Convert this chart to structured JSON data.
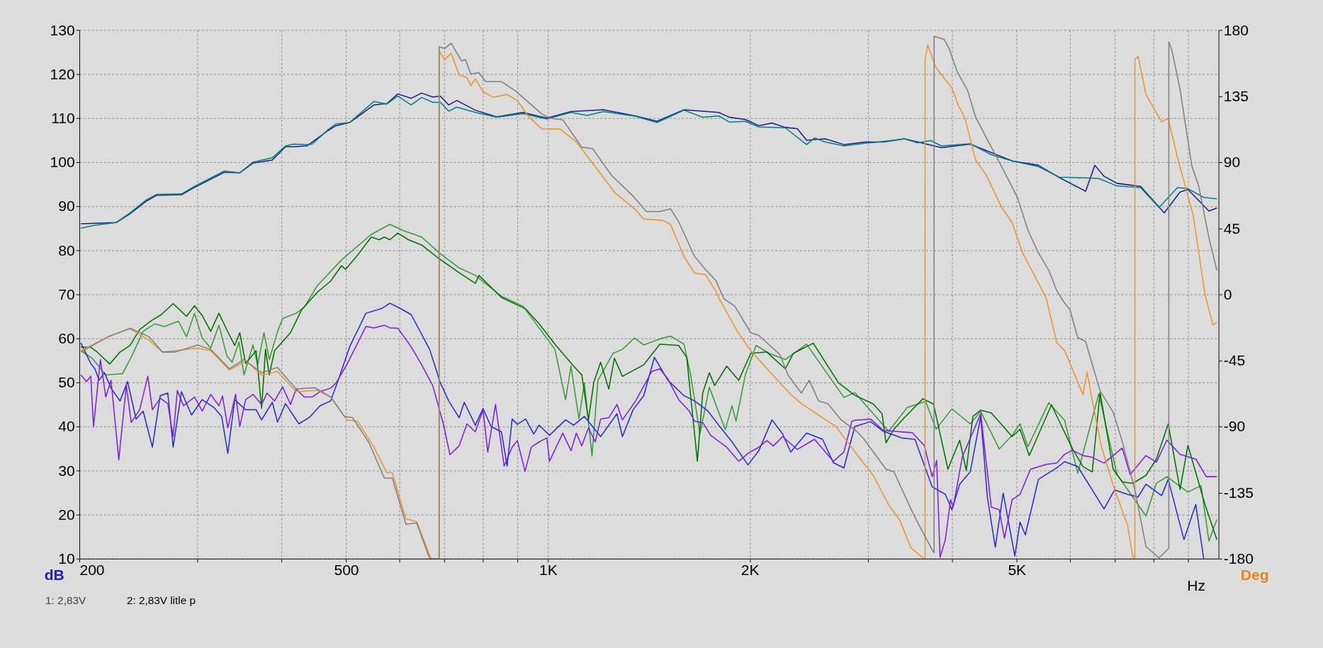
{
  "chart_data": {
    "type": "line",
    "xlabel": "Hz",
    "ylabel": "dB",
    "y2label": "Deg",
    "log": "x",
    "grid": true,
    "line_style": "solid",
    "xlim": [
      200,
      10000
    ],
    "ylim": [
      10,
      130
    ],
    "y2lim": [
      -180,
      180
    ],
    "xticks": [
      200,
      {
        "value": 300,
        "label": null
      },
      {
        "value": 400,
        "label": null
      },
      500,
      {
        "value": 600,
        "label": null
      },
      {
        "value": 700,
        "label": null
      },
      {
        "value": 800,
        "label": null
      },
      {
        "value": 900,
        "label": null
      },
      {
        "value": 1000,
        "label": "1K"
      },
      {
        "value": 2000,
        "label": "2K"
      },
      {
        "value": 3000,
        "label": null
      },
      {
        "value": 4000,
        "label": null
      },
      {
        "value": 5000,
        "label": "5K"
      },
      {
        "value": 6000,
        "label": null
      },
      {
        "value": 7000,
        "label": null
      },
      {
        "value": 8000,
        "label": null
      },
      {
        "value": 9000,
        "label": null
      }
    ],
    "yticks": [
      10,
      20,
      30,
      40,
      50,
      60,
      70,
      80,
      90,
      100,
      110,
      120,
      130
    ],
    "y2ticks": [
      -180,
      -135,
      -90,
      -45,
      0,
      45,
      90,
      135,
      180
    ],
    "annotations": [
      "1: 2,83V",
      "2: 2,83V litle p"
    ],
    "series": [
      {
        "color": "#1c1c8c",
        "x": [
          201,
          227,
          238,
          252,
          261,
          284,
          297,
          329,
          347,
          363,
          388,
          406,
          417,
          437,
          470,
          483,
          506,
          550,
          575,
          597,
          625,
          648,
          673,
          691,
          711,
          731,
          779,
          838,
          918,
          996,
          1082,
          1210,
          1351,
          1454,
          1595,
          1797,
          1864,
          1969,
          2062,
          2158,
          2259,
          2354,
          2430,
          2591,
          2762,
          2973,
          3163,
          3400,
          3860,
          4262,
          4922,
          5386,
          5789,
          6335,
          6538,
          6748,
          7056,
          7653,
          8299,
          8760,
          9001,
          9674,
          9941
        ],
        "values": [
          86,
          86.3,
          88.3,
          91.2,
          92.5,
          92.6,
          94.3,
          97.7,
          97.6,
          99.8,
          100.5,
          103.5,
          103.5,
          103.7,
          107.2,
          108.3,
          109,
          113,
          113.3,
          115.5,
          114.5,
          115.7,
          114.8,
          115,
          113,
          114,
          111.8,
          110.3,
          111.3,
          110,
          111.5,
          111.9,
          110.5,
          109.3,
          111.9,
          111.3,
          110.2,
          109.7,
          108.3,
          108.9,
          107.9,
          107.6,
          105,
          105.3,
          104,
          104.6,
          104.6,
          105.3,
          103.3,
          104.1,
          100.3,
          99.3,
          96.5,
          93.4,
          99.3,
          96.8,
          95.2,
          94.5,
          88.5,
          93.2,
          93.8,
          88.9,
          89.6
        ]
      },
      {
        "color": "#008080",
        "x": [
          201,
          211,
          227,
          238,
          252,
          261,
          284,
          297,
          329,
          347,
          363,
          388,
          406,
          417,
          437,
          445,
          470,
          483,
          506,
          550,
          575,
          597,
          625,
          648,
          673,
          691,
          711,
          731,
          779,
          838,
          918,
          996,
          1082,
          1144,
          1210,
          1351,
          1454,
          1595,
          1701,
          1797,
          1864,
          1969,
          2062,
          2259,
          2430,
          2497,
          2591,
          2762,
          2973,
          3163,
          3400,
          3558,
          3723,
          3860,
          4262,
          4582,
          4922,
          5386,
          5789,
          6111,
          6627,
          7056,
          7653,
          8150,
          8682,
          9001,
          9501,
          9941
        ],
        "values": [
          85,
          85.7,
          86.3,
          88.5,
          91.5,
          92.7,
          92.8,
          94.5,
          98,
          97.6,
          100,
          101,
          103.7,
          104.1,
          104,
          104.1,
          107.4,
          108.7,
          109,
          113.8,
          113.2,
          115,
          113,
          114.7,
          113.6,
          113.6,
          111.6,
          112.5,
          111.3,
          110.2,
          111,
          109.8,
          111.3,
          110.6,
          111.5,
          110.4,
          109,
          111.8,
          110.2,
          110.5,
          109.1,
          109.3,
          108,
          107.8,
          104,
          105.5,
          104.6,
          103.7,
          104.3,
          104.7,
          105.3,
          104.4,
          104.9,
          103.7,
          104.2,
          101.7,
          100.3,
          99,
          96.6,
          96.5,
          96.3,
          94.6,
          94.2,
          89.7,
          94.2,
          94,
          92,
          91.7
        ]
      },
      {
        "color": "#3a9a3a",
        "x": [
          201,
          209,
          219,
          232,
          240,
          249,
          259,
          268,
          281,
          289,
          297,
          305,
          314,
          323,
          332,
          338,
          346,
          352,
          363,
          369,
          377,
          384,
          395,
          402,
          421,
          433,
          453,
          492,
          545,
          581,
          608,
          648,
          691,
          737,
          779,
          852,
          918,
          1024,
          1062,
          1082,
          1112,
          1133,
          1163,
          1187,
          1250,
          1291,
          1345,
          1389,
          1481,
          1523,
          1595,
          1632,
          1685,
          1740,
          1838,
          1881,
          1907,
          1969,
          2043,
          2139,
          2259,
          2430,
          2762,
          2867,
          3221,
          3432,
          3657,
          3791,
          4002,
          4262,
          4419,
          4708,
          4922,
          5057,
          5196,
          5583,
          5894,
          6166,
          6627,
          7056,
          7448,
          7792,
          8077,
          8374,
          9001,
          9416,
          9674,
          9941
        ],
        "values": [
          57.2,
          55.5,
          51.7,
          52,
          56.3,
          61.6,
          63.3,
          62.7,
          63.9,
          60.4,
          65.7,
          60.1,
          57.8,
          63,
          56,
          54.6,
          59.2,
          51.7,
          58.5,
          54,
          61.3,
          55.2,
          61.6,
          64.5,
          65.7,
          67.1,
          72,
          77.8,
          83.6,
          85.9,
          84.5,
          83,
          79.2,
          76,
          74.3,
          69.6,
          67.3,
          57.5,
          46.1,
          53.7,
          41.7,
          49.9,
          33.3,
          50.5,
          56.6,
          57.5,
          60.1,
          58.5,
          60.1,
          60.5,
          58.7,
          51.7,
          38.3,
          48.9,
          39.3,
          44.7,
          41.2,
          51.7,
          58.4,
          56.6,
          55.2,
          58.7,
          46.6,
          47.7,
          38.9,
          44.3,
          45.7,
          39.4,
          44,
          40.6,
          43.4,
          34.9,
          38,
          40.6,
          35.4,
          45.4,
          41.4,
          29.4,
          47.4,
          29.1,
          24,
          19.7,
          27.1,
          28.6,
          25.1,
          26.6,
          14,
          18.9
        ]
      },
      {
        "color": "#007000",
        "x": [
          201,
          208,
          213,
          222,
          230,
          238,
          246,
          256,
          265,
          276,
          289,
          297,
          305,
          314,
          323,
          332,
          341,
          347,
          354,
          367,
          374,
          379,
          384,
          391,
          413,
          429,
          453,
          474,
          492,
          499,
          520,
          545,
          560,
          570,
          581,
          597,
          619,
          648,
          685,
          711,
          737,
          779,
          789,
          852,
          926,
          970,
          1024,
          1092,
          1123,
          1149,
          1170,
          1198,
          1232,
          1256,
          1291,
          1389,
          1468,
          1566,
          1610,
          1670,
          1701,
          1740,
          1772,
          1847,
          1925,
          2006,
          2119,
          2259,
          2322,
          2486,
          2712,
          2867,
          3056,
          3149,
          3192,
          3280,
          3400,
          3623,
          3757,
          3948,
          4111,
          4205,
          4301,
          4419,
          4582,
          4922,
          5057,
          5220,
          5634,
          6056,
          6278,
          6480,
          6657,
          6964,
          7185,
          7448,
          7792,
          8077,
          8412,
          8760,
          9001,
          9544,
          9941
        ],
        "values": [
          58,
          58,
          56.8,
          54.2,
          56.9,
          58.4,
          62,
          64,
          65.4,
          67.9,
          65,
          67.4,
          65.2,
          61.6,
          65.7,
          61.9,
          58.4,
          61.3,
          54.3,
          57.2,
          44.1,
          57.5,
          51.7,
          57.2,
          61.3,
          66.5,
          70.5,
          73,
          76.5,
          75.7,
          78.9,
          83,
          82.4,
          83,
          82.4,
          83.9,
          82.4,
          81.2,
          78.3,
          76.6,
          74.9,
          72.5,
          74.3,
          69.3,
          66.7,
          63.3,
          58.7,
          53.7,
          51.7,
          41.5,
          50,
          54.6,
          48.5,
          55.5,
          51.4,
          54,
          58.7,
          58.4,
          55.7,
          32.1,
          47.6,
          52.2,
          49.3,
          53.7,
          50.5,
          56.6,
          56.9,
          53.1,
          56.6,
          58.9,
          49.9,
          47.1,
          45.1,
          42.9,
          36.3,
          39.4,
          42,
          46.3,
          45.1,
          30.3,
          36.9,
          30,
          42.3,
          43.7,
          43.1,
          37.7,
          39.4,
          33.4,
          44.9,
          34.9,
          30.9,
          29.7,
          47.7,
          30.3,
          27.4,
          27.1,
          28.9,
          32.6,
          40.6,
          25.7,
          35.7,
          22.3,
          14.3
        ]
      },
      {
        "color": "#2a2ad0",
        "x": [
          201,
          205,
          208,
          211,
          214,
          218,
          223,
          230,
          236,
          243,
          249,
          257,
          264,
          271,
          276,
          284,
          294,
          305,
          317,
          326,
          333,
          341,
          354,
          367,
          374,
          388,
          395,
          406,
          425,
          441,
          457,
          474,
          488,
          506,
          535,
          565,
          581,
          602,
          625,
          666,
          691,
          711,
          737,
          750,
          779,
          800,
          822,
          852,
          869,
          884,
          900,
          926,
          952,
          970,
          1005,
          1062,
          1092,
          1133,
          1198,
          1267,
          1291,
          1339,
          1389,
          1441,
          1509,
          1595,
          1654,
          1732,
          1797,
          1881,
          1987,
          2062,
          2158,
          2238,
          2301,
          2430,
          2567,
          2663,
          2762,
          2867,
          3027,
          3163,
          3370,
          3525,
          3740,
          3913,
          4002,
          4111,
          4262,
          4419,
          4520,
          4645,
          4773,
          4967,
          5057,
          5150,
          5386,
          5737,
          5894,
          6166,
          6748,
          6996,
          7315,
          7584,
          7792,
          8224,
          8412,
          8880,
          9247,
          9501
        ],
        "values": [
          59,
          56.3,
          54.3,
          53.1,
          50.5,
          52.2,
          48.7,
          45.8,
          50.2,
          41.7,
          43.5,
          35.3,
          47,
          47.6,
          35.3,
          47.9,
          42.6,
          46.1,
          44.4,
          42.3,
          33.9,
          46.1,
          43.8,
          43.8,
          41.5,
          45.5,
          41,
          45.2,
          40.6,
          42.1,
          44.7,
          45.8,
          51.1,
          58.1,
          65.7,
          66.8,
          68,
          66.8,
          65.4,
          57.5,
          49.9,
          45.8,
          42,
          45.5,
          40.3,
          44.1,
          40,
          38.8,
          31,
          41.7,
          40.5,
          41.7,
          38.3,
          40.3,
          38,
          41.5,
          40.3,
          42.3,
          37.7,
          42.9,
          37.7,
          43.8,
          47,
          55.7,
          50.5,
          47,
          45.8,
          43.5,
          40.3,
          36.5,
          31.3,
          34.5,
          41.5,
          38.3,
          34.2,
          38.5,
          37.1,
          31.8,
          30.6,
          40,
          41.1,
          38.9,
          37.4,
          37.1,
          26.3,
          24.6,
          21.1,
          26.9,
          29.7,
          42.3,
          24,
          12.6,
          24.9,
          10.6,
          18.3,
          15.4,
          28,
          30.6,
          32,
          30.9,
          21.3,
          25.6,
          24.6,
          24,
          26.9,
          24.3,
          28,
          14.3,
          22.3,
          10
        ]
      },
      {
        "color": "#7b1fe6",
        "x": [
          201,
          205,
          208,
          210,
          215,
          219,
          223,
          229,
          235,
          239,
          246,
          253,
          257,
          264,
          271,
          276,
          280,
          286,
          297,
          305,
          314,
          323,
          327,
          333,
          342,
          347,
          354,
          363,
          374,
          381,
          391,
          402,
          413,
          421,
          433,
          445,
          457,
          474,
          483,
          501,
          535,
          550,
          570,
          581,
          597,
          625,
          648,
          673,
          698,
          714,
          737,
          757,
          779,
          800,
          813,
          835,
          860,
          884,
          900,
          924,
          944,
          970,
          996,
          1005,
          1052,
          1082,
          1102,
          1123,
          1149,
          1176,
          1198,
          1232,
          1267,
          1291,
          1351,
          1428,
          1468,
          1509,
          1566,
          1624,
          1654,
          1701,
          1748,
          1847,
          1925,
          1987,
          2062,
          2119,
          2168,
          2238,
          2354,
          2497,
          2663,
          2762,
          2839,
          2867,
          3027,
          3163,
          3494,
          3640,
          3740,
          3798,
          3843,
          3913,
          3984,
          4020,
          4148,
          4419,
          4582,
          4708,
          4794,
          4922,
          5057,
          5243,
          5533,
          5737,
          5894,
          6056,
          6278,
          6451,
          6748,
          7185,
          7381,
          7792,
          8077,
          8374,
          8760,
          9247,
          9587,
          9941
        ],
        "values": [
          51.7,
          50.2,
          51.4,
          40,
          55.2,
          46.7,
          50.5,
          32.4,
          49.3,
          40.9,
          43.8,
          51.4,
          43.8,
          46.4,
          45.2,
          37.7,
          48.2,
          44.7,
          46.7,
          43.5,
          47.3,
          44.7,
          46.9,
          39.7,
          47.3,
          40,
          46.1,
          47.3,
          45,
          47.6,
          45.8,
          49,
          45,
          48.5,
          46.7,
          46.7,
          47.9,
          48.7,
          49.9,
          54,
          62.7,
          62.4,
          63,
          62.4,
          62.3,
          58.1,
          54,
          49.3,
          40.6,
          33.6,
          35.6,
          40.6,
          38.8,
          43.8,
          34.2,
          45,
          31,
          35.3,
          36.8,
          29.8,
          35.3,
          36.5,
          37.4,
          32.1,
          38.5,
          34.5,
          38.5,
          35.6,
          39.7,
          36.5,
          41.7,
          42,
          45,
          41.5,
          45.8,
          52.5,
          53.1,
          50.8,
          46.1,
          43.5,
          41.2,
          40.9,
          38,
          35.3,
          32.1,
          33.9,
          35.3,
          36.8,
          35.6,
          37.7,
          34.8,
          37.1,
          32.1,
          34.2,
          41.2,
          41.4,
          41.7,
          39.1,
          38.6,
          35.7,
          28.6,
          32.3,
          10.3,
          14.3,
          23.4,
          21.7,
          33.1,
          42.9,
          21.7,
          21.1,
          14.6,
          23.4,
          24.6,
          30.3,
          31.4,
          31.7,
          33.7,
          34.6,
          33.4,
          33.1,
          31.7,
          35.1,
          29.1,
          33.4,
          31.9,
          36.9,
          33.7,
          32.6,
          28.6,
          28.6
        ]
      },
      {
        "color": "#e8962e",
        "axis": "y2",
        "x": [
          201,
          221,
          238,
          254,
          266,
          278,
          300,
          314,
          335,
          354,
          374,
          395,
          421,
          453,
          474,
          501,
          520,
          550,
          575,
          586,
          614,
          637,
          669,
          688,
          688,
          701,
          717,
          737,
          757,
          767,
          779,
          800,
          829,
          868,
          900,
          935,
          978,
          1043,
          1102,
          1187,
          1256,
          1351,
          1389,
          1481,
          1523,
          1595,
          1654,
          1716,
          1780,
          1797,
          1916,
          2006,
          2139,
          2301,
          2387,
          2567,
          2687,
          2867,
          3056,
          3221,
          3345,
          3478,
          3623,
          3650,
          3650,
          3683,
          3791,
          4002,
          4093,
          4186,
          4340,
          4500,
          4751,
          4922,
          5101,
          5386,
          5533,
          5737,
          5894,
          6278,
          6364,
          6538,
          6687,
          6996,
          7315,
          7448,
          7502,
          7502,
          7584,
          7792,
          8224,
          8412,
          8682,
          9164,
          9544,
          9806,
          9941
        ],
        "values": [
          -38.4,
          -28.8,
          -23.4,
          -31.2,
          -39.3,
          -38.4,
          -36.6,
          -38.4,
          -51.6,
          -45.3,
          -54.9,
          -52.5,
          -66.3,
          -65.4,
          -69.9,
          -85.5,
          -86.4,
          -104.1,
          -121.5,
          -121.5,
          -153,
          -154.8,
          -180,
          -180,
          165.9,
          159.9,
          164.1,
          149.4,
          147.6,
          142.2,
          146.7,
          138,
          134.1,
          136.2,
          132,
          121.2,
          112.8,
          112.5,
          103.8,
          84.6,
          69.6,
          57.6,
          51.3,
          50.4,
          47.7,
          25.8,
          14.4,
          13.5,
          2.1,
          -2.4,
          -25.2,
          -38.4,
          -52.5,
          -68.1,
          -74.4,
          -84,
          -90,
          -107.1,
          -123.4,
          -143.3,
          -153.6,
          -172.6,
          -179.5,
          -180,
          160,
          169.7,
          154.3,
          140.6,
          128.6,
          120,
          91.7,
          81.4,
          59.1,
          48.9,
          28.3,
          7.7,
          -2.6,
          -33,
          -38.2,
          -68.3,
          -52.8,
          -81.2,
          -103.6,
          -132.9,
          -157,
          -178.6,
          -180,
          160,
          162,
          136.3,
          117.4,
          120,
          93.4,
          54,
          0,
          -20.9,
          -19.2
        ]
      },
      {
        "color": "#808080",
        "axis": "y2",
        "x": [
          201,
          221,
          238,
          254,
          266,
          278,
          300,
          314,
          335,
          352,
          374,
          395,
          421,
          449,
          474,
          497,
          511,
          540,
          570,
          586,
          614,
          637,
          666,
          688,
          688,
          701,
          717,
          743,
          753,
          767,
          789,
          807,
          852,
          892,
          935,
          978,
          1005,
          1052,
          1123,
          1165,
          1244,
          1339,
          1402,
          1468,
          1523,
          1566,
          1654,
          1716,
          1780,
          1830,
          1899,
          2006,
          2062,
          2218,
          2280,
          2387,
          2452,
          2532,
          2614,
          2737,
          2892,
          2960,
          3192,
          3280,
          3494,
          3590,
          3740,
          3765,
          3765,
          3895,
          3966,
          4075,
          4224,
          4340,
          4500,
          4624,
          4838,
          5012,
          5196,
          5386,
          5583,
          5737,
          5894,
          6001,
          6166,
          6335,
          6657,
          6964,
          7185,
          7516,
          7792,
          8150,
          8430,
          8430,
          8527,
          8760,
          9123,
          9331,
          9674,
          9941
        ],
        "values": [
          -39.3,
          -28.8,
          -23.1,
          -28.8,
          -39.3,
          -39.3,
          -34.5,
          -37.5,
          -50.7,
          -44.4,
          -53.4,
          -49.8,
          -64.5,
          -63.6,
          -69.9,
          -83.1,
          -84,
          -100.5,
          -125.1,
          -125.1,
          -156.6,
          -155.7,
          -180,
          -180,
          168.6,
          167.4,
          171,
          159,
          159.9,
          150,
          151,
          144.9,
          144.9,
          138.9,
          130.8,
          123,
          120,
          118.8,
          100.2,
          99.3,
          81,
          66.9,
          56.4,
          56.4,
          58.2,
          49.5,
          25.8,
          17.1,
          9.3,
          -3,
          -8.1,
          -26.1,
          -27.9,
          -41.1,
          -54.9,
          -67.2,
          -58.5,
          -72.6,
          -74.4,
          -85.5,
          -93.6,
          -98.7,
          -119.1,
          -120.9,
          -148.2,
          -158.7,
          -174,
          -176,
          175.7,
          173.7,
          167.1,
          151.7,
          138.9,
          120.9,
          107.1,
          96.9,
          79.7,
          66,
          43.7,
          28.3,
          16.3,
          2.6,
          -6,
          -10.3,
          -29.5,
          -32.1,
          -65.7,
          -80.3,
          -100.2,
          -134.7,
          -171.7,
          -179.5,
          -173,
          172,
          165.4,
          139.7,
          87.4,
          74.6,
          38.6,
          16.3
        ]
      }
    ]
  }
}
